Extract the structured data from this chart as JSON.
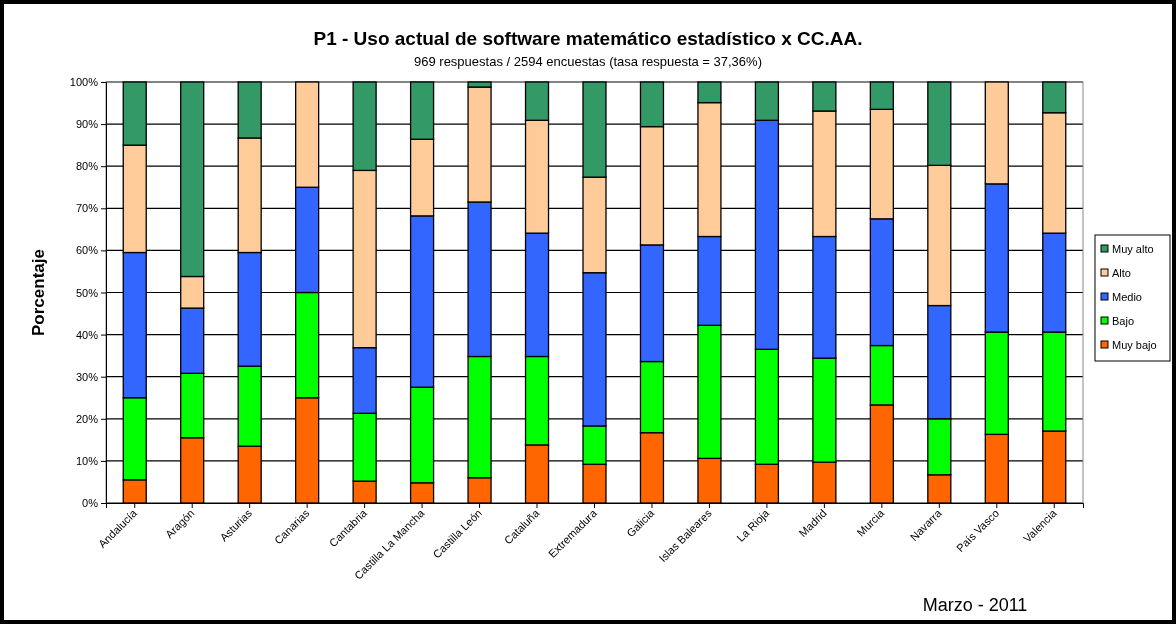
{
  "chart_data": {
    "type": "bar",
    "stacked": true,
    "title": "P1 - Uso actual de software matemático estadístico x CC.AA.",
    "subtitle": "969 respuestas / 2594 encuestas (tasa respuesta = 37,36%)",
    "ylabel": "Porcentaje",
    "annotations": [
      "Marzo - 2011"
    ],
    "categories": [
      "Andalucía",
      "Aragón",
      "Asturias",
      "Canarias",
      "Cantabria",
      "Castilla La Mancha",
      "Castilla León",
      "Cataluña",
      "Extremadura",
      "Galicia",
      "Islas Baleares",
      "La Rioja",
      "Madrid",
      "Murcia",
      "Navarra",
      "País Vasco",
      "Valencia"
    ],
    "series": [
      {
        "name": "Muy bajo",
        "color": "#ff6600",
        "values": [
          5.5,
          15.5,
          13.5,
          25,
          5.2,
          4.8,
          6,
          13.8,
          9.2,
          16.7,
          10.6,
          9.2,
          9.7,
          23.3,
          6.7,
          16.3,
          17.1
        ]
      },
      {
        "name": "Bajo",
        "color": "#00ff00",
        "values": [
          19.5,
          15.3,
          19,
          25,
          16.1,
          22.7,
          28.8,
          21,
          9.1,
          16.9,
          31.6,
          27.3,
          24.7,
          14.1,
          13.3,
          24.3,
          23.5
        ]
      },
      {
        "name": "Medio",
        "color": "#3366ff",
        "values": [
          34.5,
          15.5,
          27,
          25,
          15.6,
          40.7,
          36.7,
          29.3,
          36.4,
          27.7,
          21.1,
          54.4,
          28.9,
          30.1,
          26.9,
          35.2,
          23.5
        ]
      },
      {
        "name": "Alto",
        "color": "#ffcc99",
        "values": [
          25.5,
          7.5,
          27.2,
          25,
          42.1,
          18.2,
          27.3,
          26.8,
          22.7,
          28.1,
          31.8,
          0,
          29.8,
          26,
          33.3,
          24.2,
          28.6
        ]
      },
      {
        "name": "Muy alto",
        "color": "#339966",
        "values": [
          15,
          46.2,
          13.3,
          0,
          21,
          13.6,
          1.2,
          9.1,
          22.6,
          10.6,
          4.9,
          9.1,
          6.9,
          6.5,
          19.8,
          0,
          7.3
        ]
      }
    ],
    "ylim": [
      0,
      100
    ],
    "yticks": [
      {
        "value": 0,
        "label": "0%"
      },
      {
        "value": 10,
        "label": "10%"
      },
      {
        "value": 20,
        "label": "20%"
      },
      {
        "value": 30,
        "label": "30%"
      },
      {
        "value": 40,
        "label": "40%"
      },
      {
        "value": 50,
        "label": "50%"
      },
      {
        "value": 60,
        "label": "60%"
      },
      {
        "value": 70,
        "label": "70%"
      },
      {
        "value": 80,
        "label": "80%"
      },
      {
        "value": 90,
        "label": "90%"
      },
      {
        "value": 100,
        "label": "100%"
      }
    ],
    "grid": "y",
    "legend": "right"
  }
}
